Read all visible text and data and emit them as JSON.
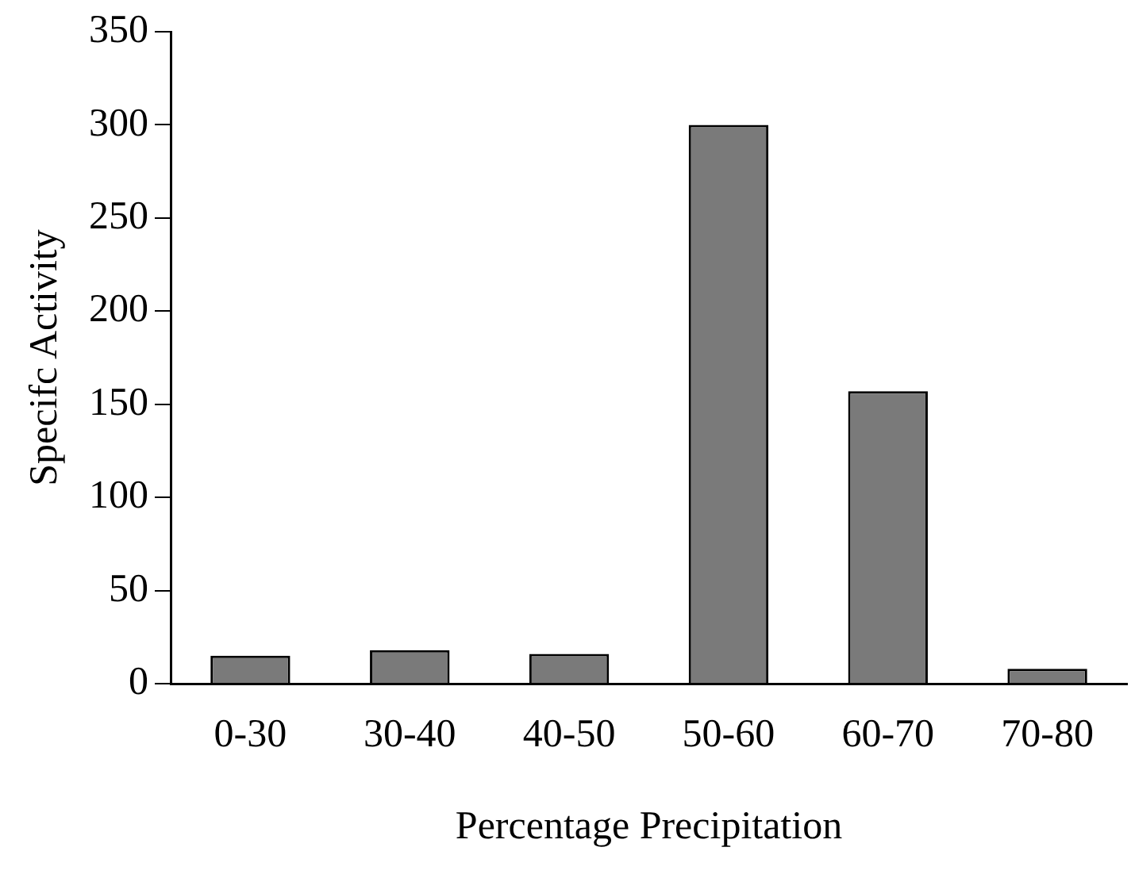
{
  "chart_data": {
    "type": "bar",
    "xlabel": "Percentage Precipitation",
    "ylabel": "Specifc Activity",
    "categories": [
      "0-30",
      "30-40",
      "40-50",
      "50-60",
      "60-70",
      "70-80"
    ],
    "values": [
      15,
      18,
      16,
      300,
      157,
      8
    ],
    "color": "#7a7a7a",
    "ylim": [
      0,
      350
    ],
    "yticks": [
      0,
      50,
      100,
      150,
      200,
      250,
      300,
      350
    ],
    "grid": false
  }
}
